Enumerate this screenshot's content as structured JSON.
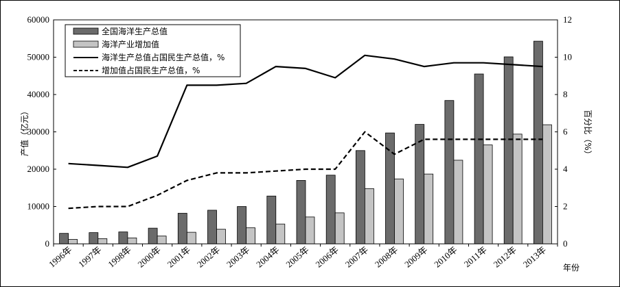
{
  "chart_data": {
    "type": "bar",
    "categories": [
      "1996年",
      "1997年",
      "1998年",
      "2000年",
      "2001年",
      "2002年",
      "2003年",
      "2004年",
      "2005年",
      "2006年",
      "2007年",
      "2008年",
      "2009年",
      "2010年",
      "2011年",
      "2012年",
      "2013年"
    ],
    "xlabel": "年份",
    "ylabel": "产值（亿元）",
    "ylabel_right": "百分比（%）",
    "ylim": [
      0,
      60000
    ],
    "ylim_right": [
      0,
      12
    ],
    "yticks": [
      "0",
      "10000",
      "20000",
      "30000",
      "40000",
      "50000",
      "60000"
    ],
    "yticks_right": [
      "0",
      "2",
      "4",
      "6",
      "8",
      "10",
      "12"
    ],
    "legend_position": "top-left",
    "grid": false,
    "series": [
      {
        "name": "全国海洋生产总值",
        "type": "bar",
        "axis": "left",
        "color": "#6b6b6b",
        "values": [
          2800,
          3000,
          3200,
          4200,
          8200,
          9000,
          10000,
          12800,
          17000,
          18400,
          25000,
          29700,
          32000,
          38400,
          45500,
          50100,
          54300
        ]
      },
      {
        "name": "海洋产业增加值",
        "type": "bar",
        "axis": "left",
        "color": "#c4c4c4",
        "values": [
          1200,
          1400,
          1600,
          2100,
          3100,
          3900,
          4300,
          5300,
          7200,
          8300,
          14800,
          17400,
          18700,
          22400,
          26500,
          29400,
          31900
        ]
      },
      {
        "name": "海洋生产总值占国民生产总值，%",
        "type": "line",
        "style": "solid",
        "axis": "right",
        "color": "#000000",
        "values": [
          4.3,
          4.2,
          4.1,
          4.7,
          8.5,
          8.5,
          8.6,
          9.5,
          9.4,
          8.9,
          10.1,
          9.9,
          9.5,
          9.7,
          9.7,
          9.6,
          9.5
        ]
      },
      {
        "name": "增加值占国民生产总值，%",
        "type": "line",
        "style": "dashed",
        "axis": "right",
        "color": "#000000",
        "values": [
          1.9,
          2.0,
          2.0,
          2.6,
          3.4,
          3.8,
          3.8,
          3.9,
          4.0,
          4.0,
          6.0,
          4.8,
          5.6,
          5.6,
          5.6,
          5.6,
          5.6
        ]
      }
    ]
  }
}
